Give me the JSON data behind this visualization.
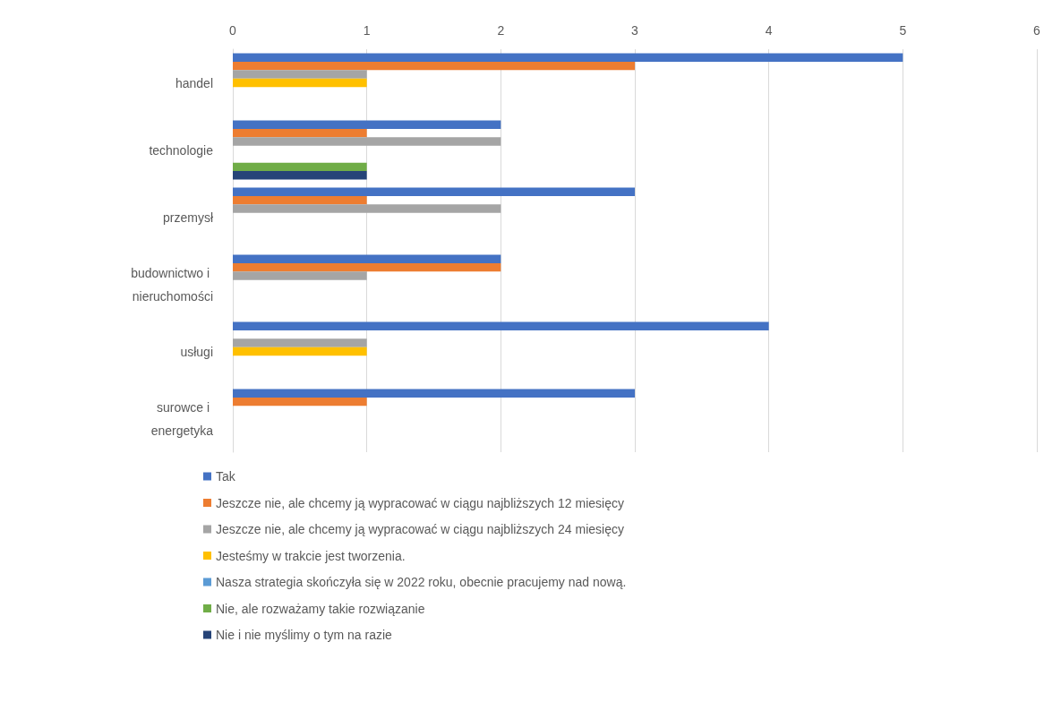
{
  "chart_data": {
    "type": "bar",
    "orientation": "horizontal",
    "categories": [
      "handel",
      "technologie",
      "przemysł",
      "budownictwo i nieruchomości",
      "usługi",
      "surowce i energetyka"
    ],
    "xlim": [
      0,
      6
    ],
    "xticks": [
      0,
      1,
      2,
      3,
      4,
      5,
      6
    ],
    "grid": "x",
    "legend": "bottom",
    "series": [
      {
        "name": "Tak",
        "color": "#4472c4",
        "values": [
          5,
          2,
          3,
          2,
          4,
          3
        ]
      },
      {
        "name": "Jeszcze nie, ale chcemy ją wypracować w ciągu najbliższych 12 miesięcy",
        "color": "#ed7d31",
        "values": [
          3,
          1,
          1,
          2,
          0,
          1
        ]
      },
      {
        "name": "Jeszcze nie, ale chcemy ją wypracować w ciągu najbliższych 24 miesięcy",
        "color": "#a5a5a5",
        "values": [
          1,
          2,
          2,
          1,
          1,
          0
        ]
      },
      {
        "name": "Jesteśmy w trakcie jest tworzenia.",
        "color": "#ffc000",
        "values": [
          1,
          0,
          0,
          0,
          1,
          0
        ]
      },
      {
        "name": "Nasza strategia skończyła się w 2022 roku, obecnie pracujemy nad nową.",
        "color": "#5b9bd5",
        "values": [
          0,
          0,
          0,
          0,
          0,
          0
        ]
      },
      {
        "name": "Nie, ale rozważamy takie rozwiązanie",
        "color": "#70ad47",
        "values": [
          0,
          1,
          0,
          0,
          0,
          0
        ]
      },
      {
        "name": "Nie i nie myślimy o tym na razie",
        "color": "#264478",
        "values": [
          0,
          1,
          0,
          0,
          0,
          0
        ]
      }
    ]
  }
}
